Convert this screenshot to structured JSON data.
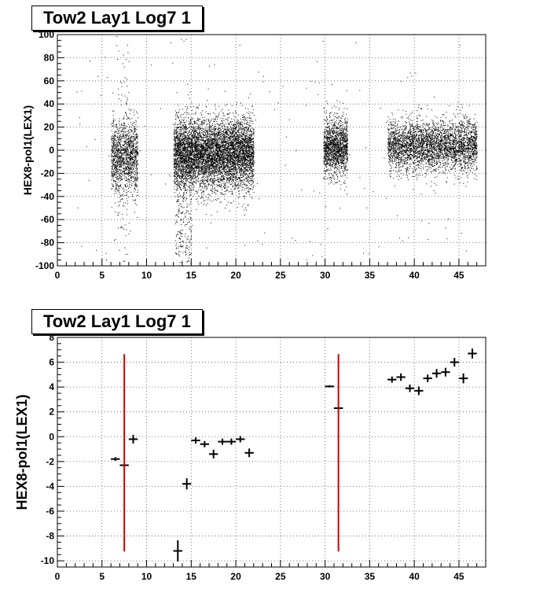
{
  "chart_data": [
    {
      "type": "scatter",
      "title": "Tow2 Lay1 Log7 1",
      "xlabel": "",
      "ylabel": "HEX8-pol1(LEX1)",
      "xlim": [
        0,
        48
      ],
      "ylim": [
        -100,
        100
      ],
      "x_ticks": [
        0,
        5,
        10,
        15,
        20,
        25,
        30,
        35,
        40,
        45
      ],
      "y_ticks": [
        -100,
        -80,
        -60,
        -40,
        -20,
        0,
        20,
        40,
        60,
        80,
        100
      ],
      "grid": true,
      "legend": "none",
      "marker_color": "#000000",
      "clusters": [
        {
          "x_range": [
            6.0,
            9.0
          ],
          "y_center": -5,
          "y_spread": 16,
          "density": 1400
        },
        {
          "x_range": [
            6.6,
            8.0
          ],
          "y_center": 10,
          "y_spread": 90,
          "density": 110
        },
        {
          "x_range": [
            13.0,
            22.0
          ],
          "y_center": -3,
          "y_spread": 15,
          "density": 6500
        },
        {
          "x_range": [
            13.2,
            15.0
          ],
          "y_center": -55,
          "y_spread": 40,
          "density": 330
        },
        {
          "x_range": [
            29.8,
            32.5
          ],
          "y_center": 3,
          "y_spread": 12,
          "density": 1500
        },
        {
          "x_range": [
            37.0,
            47.0
          ],
          "y_center": 4,
          "y_spread": 11,
          "density": 3600
        }
      ]
    },
    {
      "type": "scatter",
      "title": "Tow2 Lay1 Log7 1",
      "xlabel": "",
      "ylabel": "HEX8-pol1(LEX1)",
      "xlim": [
        0,
        48
      ],
      "ylim": [
        -10.5,
        8
      ],
      "x_ticks": [
        0,
        5,
        10,
        15,
        20,
        25,
        30,
        35,
        40,
        45
      ],
      "y_ticks": [
        -10,
        -8,
        -6,
        -4,
        -2,
        0,
        2,
        4,
        6,
        8
      ],
      "grid": true,
      "legend": "none",
      "series": [
        {
          "color": "#000000",
          "points": [
            {
              "x": 6.5,
              "y": -1.8,
              "yerr": 0.15
            },
            {
              "x": 7.5,
              "y": -2.3,
              "yerr": 0.0
            },
            {
              "x": 8.5,
              "y": -0.2,
              "yerr": 0.35
            },
            {
              "x": 13.5,
              "y": -9.2,
              "yerr": 0.85
            },
            {
              "x": 14.5,
              "y": -3.8,
              "yerr": 0.45
            },
            {
              "x": 15.5,
              "y": -0.3,
              "yerr": 0.25
            },
            {
              "x": 16.5,
              "y": -0.6,
              "yerr": 0.25
            },
            {
              "x": 17.5,
              "y": -1.4,
              "yerr": 0.35
            },
            {
              "x": 18.5,
              "y": -0.4,
              "yerr": 0.25
            },
            {
              "x": 19.5,
              "y": -0.4,
              "yerr": 0.25
            },
            {
              "x": 20.5,
              "y": -0.2,
              "yerr": 0.25
            },
            {
              "x": 21.5,
              "y": -1.3,
              "yerr": 0.35
            },
            {
              "x": 30.5,
              "y": 4.05,
              "yerr": 0.08
            },
            {
              "x": 31.5,
              "y": 2.3,
              "yerr": 0.0
            },
            {
              "x": 37.5,
              "y": 4.6,
              "yerr": 0.25
            },
            {
              "x": 38.5,
              "y": 4.8,
              "yerr": 0.3
            },
            {
              "x": 39.5,
              "y": 3.9,
              "yerr": 0.3
            },
            {
              "x": 40.5,
              "y": 3.7,
              "yerr": 0.35
            },
            {
              "x": 41.5,
              "y": 4.7,
              "yerr": 0.3
            },
            {
              "x": 42.5,
              "y": 5.1,
              "yerr": 0.35
            },
            {
              "x": 43.5,
              "y": 5.2,
              "yerr": 0.35
            },
            {
              "x": 44.5,
              "y": 6.0,
              "yerr": 0.35
            },
            {
              "x": 45.5,
              "y": 4.7,
              "yerr": 0.4
            },
            {
              "x": 46.5,
              "y": 6.7,
              "yerr": 0.4
            }
          ]
        },
        {
          "color": "#cc0000",
          "points": [
            {
              "x": 7.5,
              "y": -1.3,
              "yerr": 7.95
            },
            {
              "x": 31.5,
              "y": -1.3,
              "yerr": 7.95
            }
          ]
        }
      ]
    }
  ]
}
